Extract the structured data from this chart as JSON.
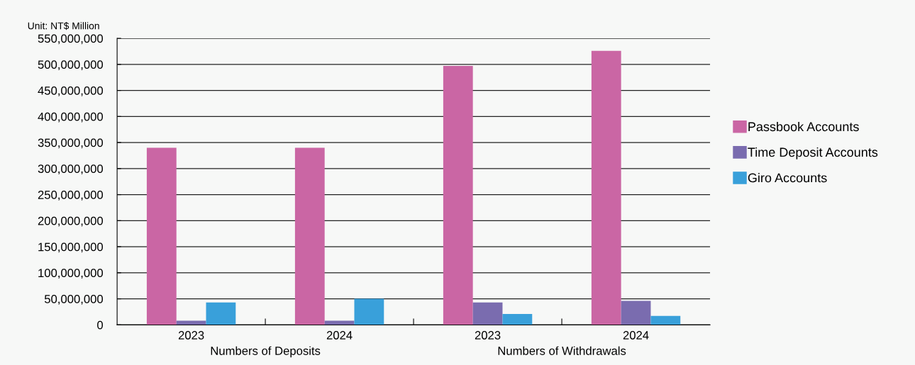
{
  "chart_data": {
    "type": "bar",
    "categories": [
      "2023",
      "2024",
      "2023",
      "2024"
    ],
    "series": [
      {
        "name": "Passbook Accounts",
        "color": "#ca66a4",
        "values": [
          340000000,
          340000000,
          497000000,
          526000000
        ]
      },
      {
        "name": "Time Deposit Accounts",
        "color": "#7a6caf",
        "values": [
          8000000,
          8000000,
          43000000,
          46000000
        ]
      },
      {
        "name": "Giro Accounts",
        "color": "#39a0da",
        "values": [
          43000000,
          50000000,
          21000000,
          17000000
        ]
      }
    ],
    "annotations": [
      "Unit: NT$ Million",
      "Numbers of Deposits",
      "Numbers of Withdrawals"
    ],
    "ylim": [
      0,
      550000000
    ],
    "yticks": [
      {
        "value": 0,
        "label": "0"
      },
      {
        "value": 50000000,
        "label": "50,000,000"
      },
      {
        "value": 100000000,
        "label": "100,000,000"
      },
      {
        "value": 150000000,
        "label": "150,000,000"
      },
      {
        "value": 200000000,
        "label": "200,000,000"
      },
      {
        "value": 250000000,
        "label": "250,000,000"
      },
      {
        "value": 300000000,
        "label": "300,000,000"
      },
      {
        "value": 350000000,
        "label": "350,000,000"
      },
      {
        "value": 400000000,
        "label": "400,000,000"
      },
      {
        "value": 450000000,
        "label": "450,000,000"
      },
      {
        "value": 500000000,
        "label": "500,000,000"
      },
      {
        "value": 550000000,
        "label": "550,000,000"
      }
    ],
    "grid": "y",
    "legend": "right"
  }
}
